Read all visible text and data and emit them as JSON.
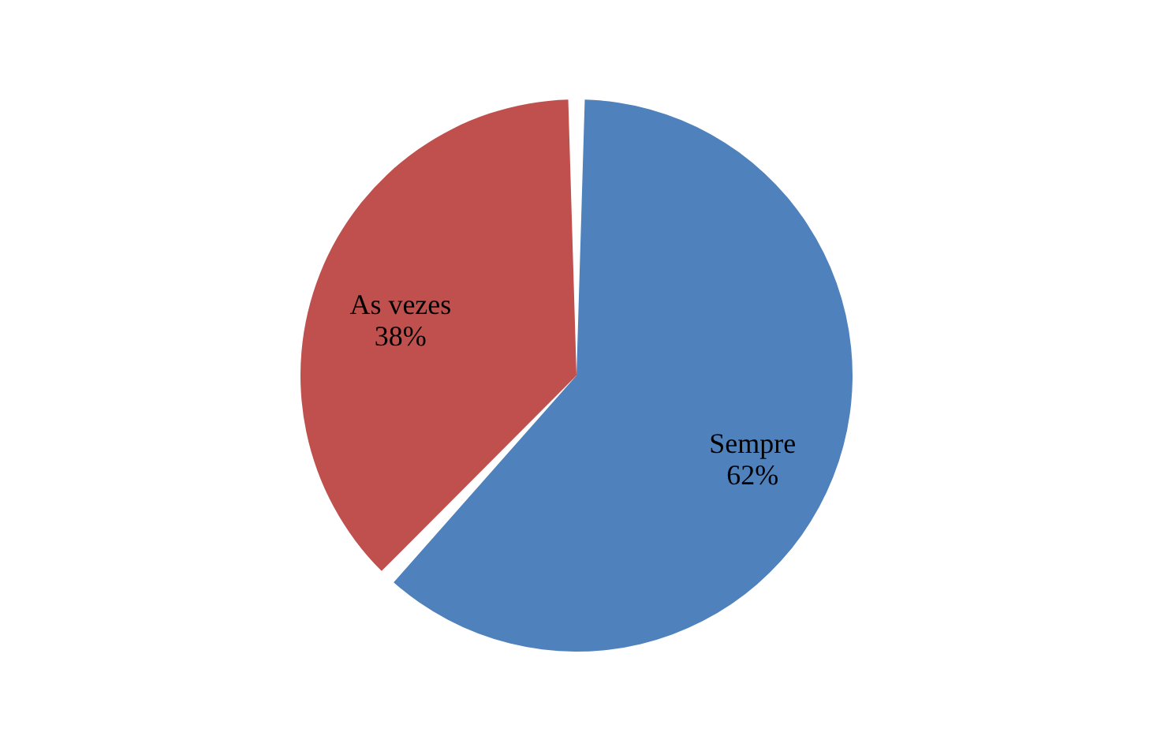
{
  "chart_data": {
    "type": "pie",
    "categories": [
      "Sempre",
      "As vezes"
    ],
    "values": [
      62,
      38
    ],
    "colors": [
      "#4f81bd",
      "#c0504d"
    ],
    "value_labels": [
      "62%",
      "38%"
    ],
    "legend": false
  }
}
